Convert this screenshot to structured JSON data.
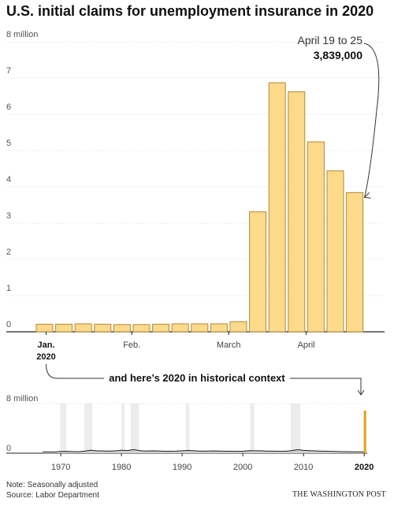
{
  "chart_data": [
    {
      "type": "bar",
      "title": "U.S. initial claims for unemployment insurance in 2020",
      "ylabel": "",
      "xlabel": "",
      "ylim": [
        0,
        8
      ],
      "y_ticks": [
        {
          "value": 0,
          "label": "0"
        },
        {
          "value": 1,
          "label": "1"
        },
        {
          "value": 2,
          "label": "2"
        },
        {
          "value": 3,
          "label": "3"
        },
        {
          "value": 4,
          "label": "4"
        },
        {
          "value": 5,
          "label": "5"
        },
        {
          "value": 6,
          "label": "6"
        },
        {
          "value": 7,
          "label": "7"
        },
        {
          "value": 8,
          "label": "8 million"
        }
      ],
      "x_ticks": [
        {
          "index": 0,
          "label": "Jan.",
          "sublabel": "2020"
        },
        {
          "index": 4.5,
          "label": "Feb."
        },
        {
          "index": 9.5,
          "label": "March"
        },
        {
          "index": 13.5,
          "label": "April"
        }
      ],
      "values": [
        0.21,
        0.21,
        0.22,
        0.21,
        0.2,
        0.2,
        0.21,
        0.22,
        0.22,
        0.22,
        0.28,
        3.31,
        6.87,
        6.62,
        5.24,
        4.44,
        3.84
      ],
      "bar_color": "#fdd98a",
      "bar_stroke": "#b08a35",
      "annotation": {
        "date": "April 19 to 25",
        "value": "3,839,000"
      },
      "grid": true
    },
    {
      "type": "area",
      "ylim": [
        0,
        8
      ],
      "y_ticks": [
        {
          "value": 0,
          "label": "0"
        },
        {
          "value": 8,
          "label": "8 million"
        }
      ],
      "xlim": [
        1967,
        2020.5
      ],
      "x_ticks": [
        {
          "value": 1970,
          "label": "1970"
        },
        {
          "value": 1980,
          "label": "1980"
        },
        {
          "value": 1990,
          "label": "1990"
        },
        {
          "value": 2000,
          "label": "2000"
        },
        {
          "value": 2010,
          "label": "2010"
        },
        {
          "value": 2020,
          "label": "2020",
          "bold": true
        }
      ],
      "recessions": [
        [
          1969.9,
          1970.9
        ],
        [
          1973.9,
          1975.2
        ],
        [
          1980.0,
          1980.5
        ],
        [
          1981.5,
          1982.9
        ],
        [
          1990.6,
          1991.2
        ],
        [
          2001.2,
          2001.9
        ],
        [
          2007.9,
          2009.5
        ]
      ],
      "x": [
        1967,
        1968,
        1969,
        1970,
        1971,
        1972,
        1973,
        1974,
        1975,
        1976,
        1977,
        1978,
        1979,
        1980,
        1981,
        1982,
        1983,
        1984,
        1985,
        1986,
        1987,
        1988,
        1989,
        1990,
        1991,
        1992,
        1993,
        1994,
        1995,
        1996,
        1997,
        1998,
        1999,
        2000,
        2001,
        2002,
        2003,
        2004,
        2005,
        2006,
        2007,
        2008,
        2009,
        2010,
        2011,
        2012,
        2013,
        2014,
        2015,
        2016,
        2017,
        2018,
        2019,
        2020
      ],
      "values": [
        0.21,
        0.19,
        0.19,
        0.29,
        0.3,
        0.26,
        0.24,
        0.35,
        0.47,
        0.38,
        0.37,
        0.34,
        0.38,
        0.48,
        0.43,
        0.58,
        0.42,
        0.35,
        0.38,
        0.37,
        0.32,
        0.31,
        0.33,
        0.39,
        0.44,
        0.4,
        0.34,
        0.33,
        0.36,
        0.35,
        0.32,
        0.32,
        0.3,
        0.3,
        0.42,
        0.4,
        0.4,
        0.34,
        0.33,
        0.31,
        0.32,
        0.42,
        0.57,
        0.46,
        0.41,
        0.37,
        0.34,
        0.31,
        0.28,
        0.26,
        0.24,
        0.22,
        0.22,
        0.21
      ],
      "spike": {
        "x": 2020,
        "value": 6.87
      },
      "spike_color": "#e0a21d"
    }
  ],
  "context_label": "and here’s 2020 in historical context",
  "notes": {
    "note": "Note: Seasonally adjusted",
    "source": "Source: Labor Department"
  },
  "brand": "THE WASHINGTON POST"
}
